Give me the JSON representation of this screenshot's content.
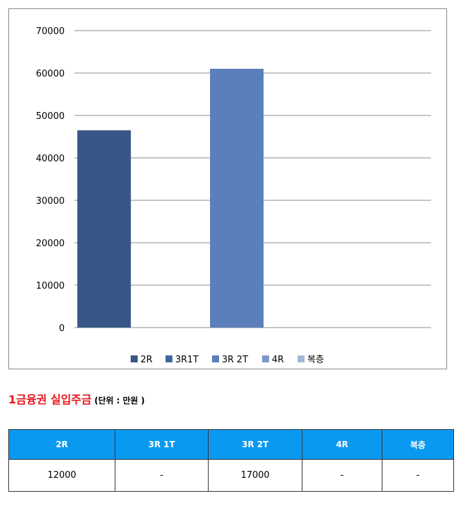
{
  "chart_data": {
    "type": "bar",
    "categories": [
      "2R",
      "3R1T",
      "3R 2T",
      "4R",
      "복층"
    ],
    "series": [
      {
        "name": "2R",
        "values": [
          46500,
          null,
          null,
          null,
          null
        ],
        "color": "#385786"
      },
      {
        "name": "3R1T",
        "values": [
          null,
          null,
          null,
          null,
          null
        ],
        "color": "#4167a1"
      },
      {
        "name": "3R 2T",
        "values": [
          null,
          null,
          61000,
          null,
          null
        ],
        "color": "#5a7fba"
      },
      {
        "name": "4R",
        "values": [
          null,
          null,
          null,
          null,
          null
        ],
        "color": "#7a98c9"
      },
      {
        "name": "복층",
        "values": [
          null,
          null,
          null,
          null,
          null
        ],
        "color": "#a2b8da"
      }
    ],
    "ylim": [
      0,
      70000
    ],
    "yticks": [
      0,
      10000,
      20000,
      30000,
      40000,
      50000,
      60000,
      70000
    ],
    "grid": true,
    "legend_position": "bottom"
  },
  "section": {
    "title": "1금융권 실입주금",
    "unit": "(단위 : 만원 )"
  },
  "table": {
    "headers": [
      "2R",
      "3R 1T",
      "3R 2T",
      "4R",
      "복층"
    ],
    "row": [
      "12000",
      "-",
      "17000",
      "-",
      "-"
    ]
  },
  "colors": {
    "header_bg": "#0a99f1",
    "title_red": "#e8141c"
  }
}
